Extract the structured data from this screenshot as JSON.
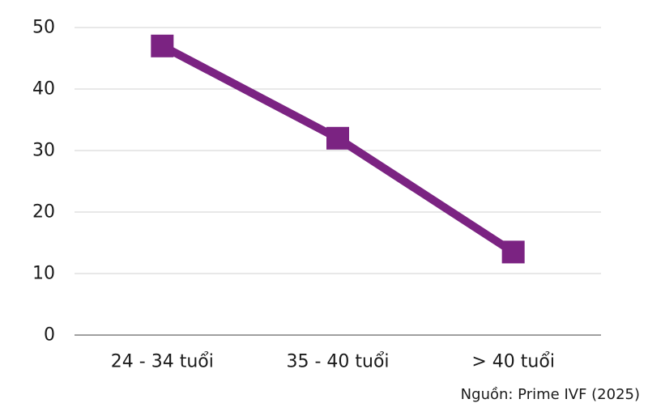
{
  "chart_data": {
    "type": "line",
    "categories": [
      "24 - 34 tuổi",
      "35 - 40 tuổi",
      "> 40 tuổi"
    ],
    "series": [
      {
        "values": [
          47,
          32,
          13.5
        ]
      }
    ],
    "ylim": [
      0,
      50
    ],
    "yticks": [
      0,
      10,
      20,
      30,
      40,
      50
    ],
    "grid": true,
    "marker": "square",
    "colors": {
      "series": "#7b2382",
      "grid": "#d0d0d0",
      "axis": "#808080"
    },
    "source": "Nguồn: Prime IVF (2025)"
  }
}
